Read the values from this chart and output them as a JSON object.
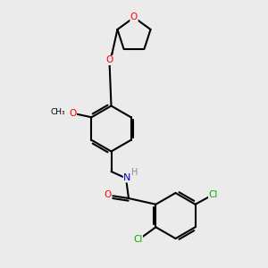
{
  "background_color": "#ebebeb",
  "line_color": "#000000",
  "bond_width": 1.5,
  "atom_colors": {
    "O": "#ff0000",
    "N": "#0000cc",
    "Cl": "#00aa00",
    "H": "#888888",
    "C": "#000000"
  },
  "figsize": [
    3.0,
    3.0
  ],
  "dpi": 100
}
